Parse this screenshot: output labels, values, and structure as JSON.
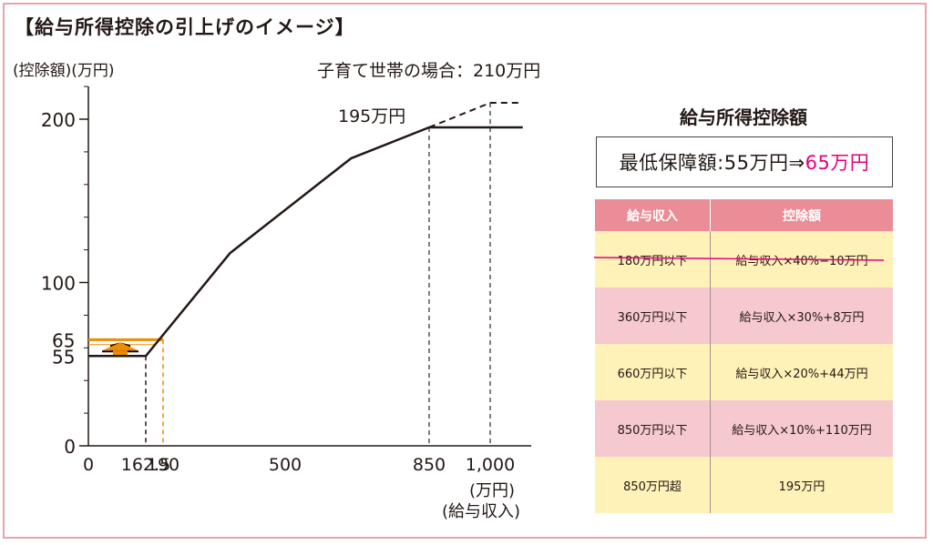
{
  "title": "【給与所得控除の引上げのイメージ】",
  "chart_data": {
    "type": "line",
    "ylabel": "(控除額)(万円)",
    "xlabel_unit": "(万円)",
    "xlabel": "(給与収入)",
    "x_ticks": [
      {
        "value": 0,
        "label": "0"
      },
      {
        "value": 162.5,
        "label": "162.5"
      },
      {
        "value": 190,
        "label": "190"
      },
      {
        "value": 500,
        "label": "500"
      },
      {
        "value": 850,
        "label": "850"
      },
      {
        "value": 1000,
        "label": "1,000"
      }
    ],
    "y_ticks": [
      {
        "value": 0,
        "label": "0"
      },
      {
        "value": 100,
        "label": "100"
      },
      {
        "value": 200,
        "label": "200"
      }
    ],
    "y_marks": [
      {
        "value": 55,
        "label": "55",
        "color": "#231815"
      },
      {
        "value": 65,
        "label": "65",
        "color": "#ee8c00"
      }
    ],
    "ylim": [
      0,
      220
    ],
    "xlim": [
      0,
      1080
    ],
    "series": [
      {
        "style": "solid",
        "points": [
          [
            0,
            55
          ],
          [
            162.5,
            55
          ],
          [
            360,
            118
          ],
          [
            660,
            176
          ],
          [
            850,
            195
          ],
          [
            1080,
            195
          ]
        ]
      },
      {
        "style": "dashed",
        "points": [
          [
            850,
            195
          ],
          [
            1000,
            210
          ],
          [
            1080,
            210
          ]
        ]
      }
    ],
    "annotations": [
      {
        "text": "195万円",
        "x": 850,
        "y": 195
      },
      {
        "text": "子育て世帯の場合：210万円",
        "x": 1000,
        "y": 210
      }
    ],
    "guide_lines": [
      {
        "x": 162.5,
        "y": 55,
        "color": "#231815"
      },
      {
        "x": 190,
        "y": 65,
        "color": "#ee8c00"
      },
      {
        "x": 850,
        "y": 195,
        "color": "#555555"
      },
      {
        "x": 1000,
        "y": 210,
        "color": "#555555"
      }
    ],
    "accent_color": "#ee8c00"
  },
  "table_title": "給与所得控除額",
  "minimum": {
    "prefix": "最低保障額:55万円⇒",
    "new_value": "65万円"
  },
  "table": {
    "headers": [
      "給与収入",
      "控除額"
    ],
    "rows": [
      {
        "income": "180万円以下",
        "deduction": "給与収入×40%−10万円",
        "struck": true
      },
      {
        "income": "360万円以下",
        "deduction": "給与収入×30%+8万円"
      },
      {
        "income": "660万円以下",
        "deduction": "給与収入×20%+44万円"
      },
      {
        "income": "850万円以下",
        "deduction": "給与収入×10%+110万円"
      },
      {
        "income": "850万円超",
        "deduction": "195万円"
      }
    ]
  }
}
